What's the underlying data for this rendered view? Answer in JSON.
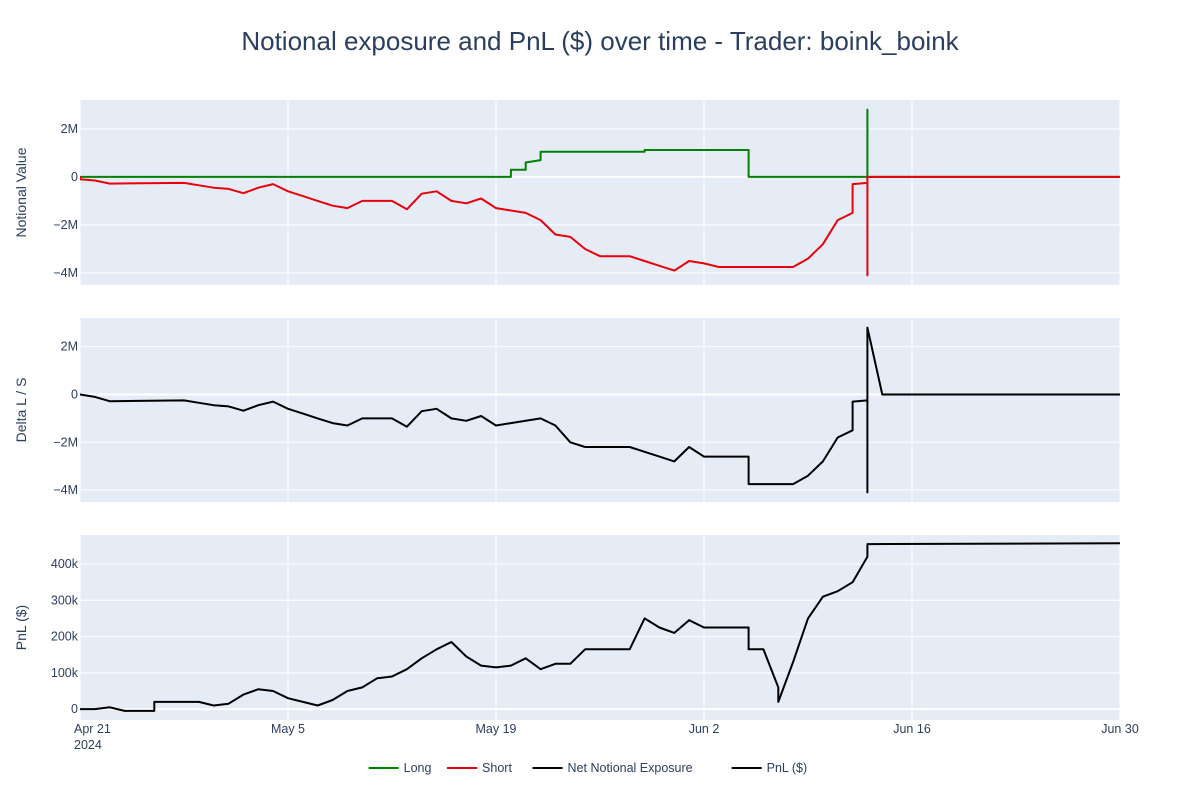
{
  "chart_data": {
    "type": "line",
    "title": "Notional exposure and PnL ($) over time - Trader: boink_boink",
    "x_ticks": [
      {
        "date": "2024-04-21",
        "label": "Apr 21",
        "sublabel": "2024"
      },
      {
        "date": "2024-05-05",
        "label": "May 5"
      },
      {
        "date": "2024-05-19",
        "label": "May 19"
      },
      {
        "date": "2024-06-02",
        "label": "Jun 2"
      },
      {
        "date": "2024-06-16",
        "label": "Jun 16"
      },
      {
        "date": "2024-06-30",
        "label": "Jun 30"
      }
    ],
    "xlim": [
      "2024-04-21",
      "2024-06-30"
    ],
    "legend": {
      "placement": "bottom-center",
      "entries": [
        {
          "name": "Long",
          "color": "#008000"
        },
        {
          "name": "Short",
          "color": "#e8000b"
        },
        {
          "name": "Net Notional Exposure",
          "color": "#000000"
        },
        {
          "name": "PnL ($)",
          "color": "#000000"
        }
      ]
    },
    "panels": [
      {
        "ylabel": "Notional Value",
        "ylim": [
          -4500000,
          3200000
        ],
        "y_ticks": [
          {
            "v": 2000000,
            "label": "2M"
          },
          {
            "v": 0,
            "label": "0"
          },
          {
            "v": -2000000,
            "label": "−2M"
          },
          {
            "v": -4000000,
            "label": "−4M"
          }
        ],
        "series": [
          {
            "name": "Long",
            "color": "#008000",
            "points": [
              [
                "2024-04-20",
                0
              ],
              [
                "2024-05-20",
                0
              ],
              [
                "2024-05-20",
                300000
              ],
              [
                "2024-05-21",
                300000
              ],
              [
                "2024-05-21",
                600000
              ],
              [
                "2024-05-22",
                700000
              ],
              [
                "2024-05-22",
                1050000
              ],
              [
                "2024-05-29",
                1050000
              ],
              [
                "2024-05-29",
                1120000
              ],
              [
                "2024-06-05",
                1120000
              ],
              [
                "2024-06-05",
                0
              ],
              [
                "2024-06-13",
                0
              ],
              [
                "2024-06-13",
                2800000
              ],
              [
                "2024-06-13",
                0
              ],
              [
                "2024-06-30",
                0
              ]
            ]
          },
          {
            "name": "Short",
            "color": "#e8000b",
            "points": [
              [
                "2024-04-20",
                0
              ],
              [
                "2024-04-21",
                0
              ],
              [
                "2024-04-21",
                -100000
              ],
              [
                "2024-04-22",
                -150000
              ],
              [
                "2024-04-23",
                -280000
              ],
              [
                "2024-04-28",
                -250000
              ],
              [
                "2024-04-29",
                -350000
              ],
              [
                "2024-04-30",
                -450000
              ],
              [
                "2024-05-01",
                -500000
              ],
              [
                "2024-05-02",
                -680000
              ],
              [
                "2024-05-03",
                -450000
              ],
              [
                "2024-05-04",
                -300000
              ],
              [
                "2024-05-05",
                -600000
              ],
              [
                "2024-05-06",
                -800000
              ],
              [
                "2024-05-07",
                -1000000
              ],
              [
                "2024-05-08",
                -1200000
              ],
              [
                "2024-05-09",
                -1300000
              ],
              [
                "2024-05-10",
                -1000000
              ],
              [
                "2024-05-12",
                -1000000
              ],
              [
                "2024-05-13",
                -1350000
              ],
              [
                "2024-05-14",
                -700000
              ],
              [
                "2024-05-15",
                -600000
              ],
              [
                "2024-05-16",
                -1000000
              ],
              [
                "2024-05-17",
                -1100000
              ],
              [
                "2024-05-18",
                -900000
              ],
              [
                "2024-05-19",
                -1300000
              ],
              [
                "2024-05-20",
                -1400000
              ],
              [
                "2024-05-21",
                -1500000
              ],
              [
                "2024-05-22",
                -1800000
              ],
              [
                "2024-05-23",
                -2400000
              ],
              [
                "2024-05-24",
                -2500000
              ],
              [
                "2024-05-25",
                -3000000
              ],
              [
                "2024-05-26",
                -3300000
              ],
              [
                "2024-05-28",
                -3300000
              ],
              [
                "2024-05-29",
                -3500000
              ],
              [
                "2024-05-30",
                -3700000
              ],
              [
                "2024-05-31",
                -3900000
              ],
              [
                "2024-06-01",
                -3500000
              ],
              [
                "2024-06-02",
                -3600000
              ],
              [
                "2024-06-03",
                -3750000
              ],
              [
                "2024-06-08",
                -3750000
              ],
              [
                "2024-06-09",
                -3400000
              ],
              [
                "2024-06-10",
                -2800000
              ],
              [
                "2024-06-11",
                -1800000
              ],
              [
                "2024-06-12",
                -1500000
              ],
              [
                "2024-06-12",
                -300000
              ],
              [
                "2024-06-13",
                -250000
              ],
              [
                "2024-06-13",
                -4100000
              ],
              [
                "2024-06-13",
                0
              ],
              [
                "2024-06-30",
                0
              ]
            ]
          }
        ]
      },
      {
        "ylabel": "Delta L / S",
        "ylim": [
          -4500000,
          3200000
        ],
        "y_ticks": [
          {
            "v": 2000000,
            "label": "2M"
          },
          {
            "v": 0,
            "label": "0"
          },
          {
            "v": -2000000,
            "label": "−2M"
          },
          {
            "v": -4000000,
            "label": "−4M"
          }
        ],
        "series": [
          {
            "name": "Net Notional Exposure",
            "color": "#000000",
            "points": [
              [
                "2024-04-20",
                0
              ],
              [
                "2024-04-21",
                0
              ],
              [
                "2024-04-22",
                -100000
              ],
              [
                "2024-04-23",
                -280000
              ],
              [
                "2024-04-28",
                -250000
              ],
              [
                "2024-04-29",
                -350000
              ],
              [
                "2024-04-30",
                -450000
              ],
              [
                "2024-05-01",
                -500000
              ],
              [
                "2024-05-02",
                -680000
              ],
              [
                "2024-05-03",
                -450000
              ],
              [
                "2024-05-04",
                -300000
              ],
              [
                "2024-05-05",
                -600000
              ],
              [
                "2024-05-06",
                -800000
              ],
              [
                "2024-05-07",
                -1000000
              ],
              [
                "2024-05-08",
                -1200000
              ],
              [
                "2024-05-09",
                -1300000
              ],
              [
                "2024-05-10",
                -1000000
              ],
              [
                "2024-05-12",
                -1000000
              ],
              [
                "2024-05-13",
                -1350000
              ],
              [
                "2024-05-14",
                -700000
              ],
              [
                "2024-05-15",
                -600000
              ],
              [
                "2024-05-16",
                -1000000
              ],
              [
                "2024-05-17",
                -1100000
              ],
              [
                "2024-05-18",
                -900000
              ],
              [
                "2024-05-19",
                -1300000
              ],
              [
                "2024-05-20",
                -1200000
              ],
              [
                "2024-05-21",
                -1100000
              ],
              [
                "2024-05-22",
                -1000000
              ],
              [
                "2024-05-23",
                -1300000
              ],
              [
                "2024-05-24",
                -2000000
              ],
              [
                "2024-05-25",
                -2200000
              ],
              [
                "2024-05-28",
                -2200000
              ],
              [
                "2024-05-29",
                -2400000
              ],
              [
                "2024-05-30",
                -2600000
              ],
              [
                "2024-05-31",
                -2800000
              ],
              [
                "2024-06-01",
                -2200000
              ],
              [
                "2024-06-02",
                -2600000
              ],
              [
                "2024-06-05",
                -2600000
              ],
              [
                "2024-06-05",
                -3750000
              ],
              [
                "2024-06-08",
                -3750000
              ],
              [
                "2024-06-09",
                -3400000
              ],
              [
                "2024-06-10",
                -2800000
              ],
              [
                "2024-06-11",
                -1800000
              ],
              [
                "2024-06-12",
                -1500000
              ],
              [
                "2024-06-12",
                -300000
              ],
              [
                "2024-06-13",
                -250000
              ],
              [
                "2024-06-13",
                -4100000
              ],
              [
                "2024-06-13",
                2800000
              ],
              [
                "2024-06-14",
                0
              ],
              [
                "2024-06-30",
                0
              ]
            ]
          }
        ]
      },
      {
        "ylabel": "PnL ($)",
        "ylim": [
          -30000,
          480000
        ],
        "y_ticks": [
          {
            "v": 400000,
            "label": "400k"
          },
          {
            "v": 300000,
            "label": "300k"
          },
          {
            "v": 200000,
            "label": "200k"
          },
          {
            "v": 100000,
            "label": "100k"
          },
          {
            "v": 0,
            "label": "0"
          }
        ],
        "series": [
          {
            "name": "PnL ($)",
            "color": "#000000",
            "points": [
              [
                "2024-04-20",
                0
              ],
              [
                "2024-04-22",
                0
              ],
              [
                "2024-04-23",
                5000
              ],
              [
                "2024-04-24",
                -5000
              ],
              [
                "2024-04-26",
                -5000
              ],
              [
                "2024-04-26",
                20000
              ],
              [
                "2024-04-29",
                20000
              ],
              [
                "2024-04-30",
                10000
              ],
              [
                "2024-05-01",
                15000
              ],
              [
                "2024-05-02",
                40000
              ],
              [
                "2024-05-03",
                55000
              ],
              [
                "2024-05-04",
                50000
              ],
              [
                "2024-05-05",
                30000
              ],
              [
                "2024-05-06",
                20000
              ],
              [
                "2024-05-07",
                10000
              ],
              [
                "2024-05-08",
                25000
              ],
              [
                "2024-05-09",
                50000
              ],
              [
                "2024-05-10",
                60000
              ],
              [
                "2024-05-11",
                85000
              ],
              [
                "2024-05-12",
                90000
              ],
              [
                "2024-05-13",
                110000
              ],
              [
                "2024-05-14",
                140000
              ],
              [
                "2024-05-15",
                165000
              ],
              [
                "2024-05-16",
                185000
              ],
              [
                "2024-05-17",
                145000
              ],
              [
                "2024-05-18",
                120000
              ],
              [
                "2024-05-19",
                115000
              ],
              [
                "2024-05-20",
                120000
              ],
              [
                "2024-05-21",
                140000
              ],
              [
                "2024-05-22",
                110000
              ],
              [
                "2024-05-23",
                125000
              ],
              [
                "2024-05-24",
                125000
              ],
              [
                "2024-05-25",
                165000
              ],
              [
                "2024-05-28",
                165000
              ],
              [
                "2024-05-29",
                250000
              ],
              [
                "2024-05-30",
                225000
              ],
              [
                "2024-05-31",
                210000
              ],
              [
                "2024-06-01",
                245000
              ],
              [
                "2024-06-02",
                225000
              ],
              [
                "2024-06-05",
                225000
              ],
              [
                "2024-06-05",
                165000
              ],
              [
                "2024-06-06",
                165000
              ],
              [
                "2024-06-07",
                60000
              ],
              [
                "2024-06-07",
                20000
              ],
              [
                "2024-06-08",
                130000
              ],
              [
                "2024-06-09",
                250000
              ],
              [
                "2024-06-10",
                310000
              ],
              [
                "2024-06-11",
                325000
              ],
              [
                "2024-06-12",
                350000
              ],
              [
                "2024-06-13",
                420000
              ],
              [
                "2024-06-13",
                455000
              ],
              [
                "2024-06-30",
                457000
              ]
            ]
          }
        ]
      }
    ]
  }
}
